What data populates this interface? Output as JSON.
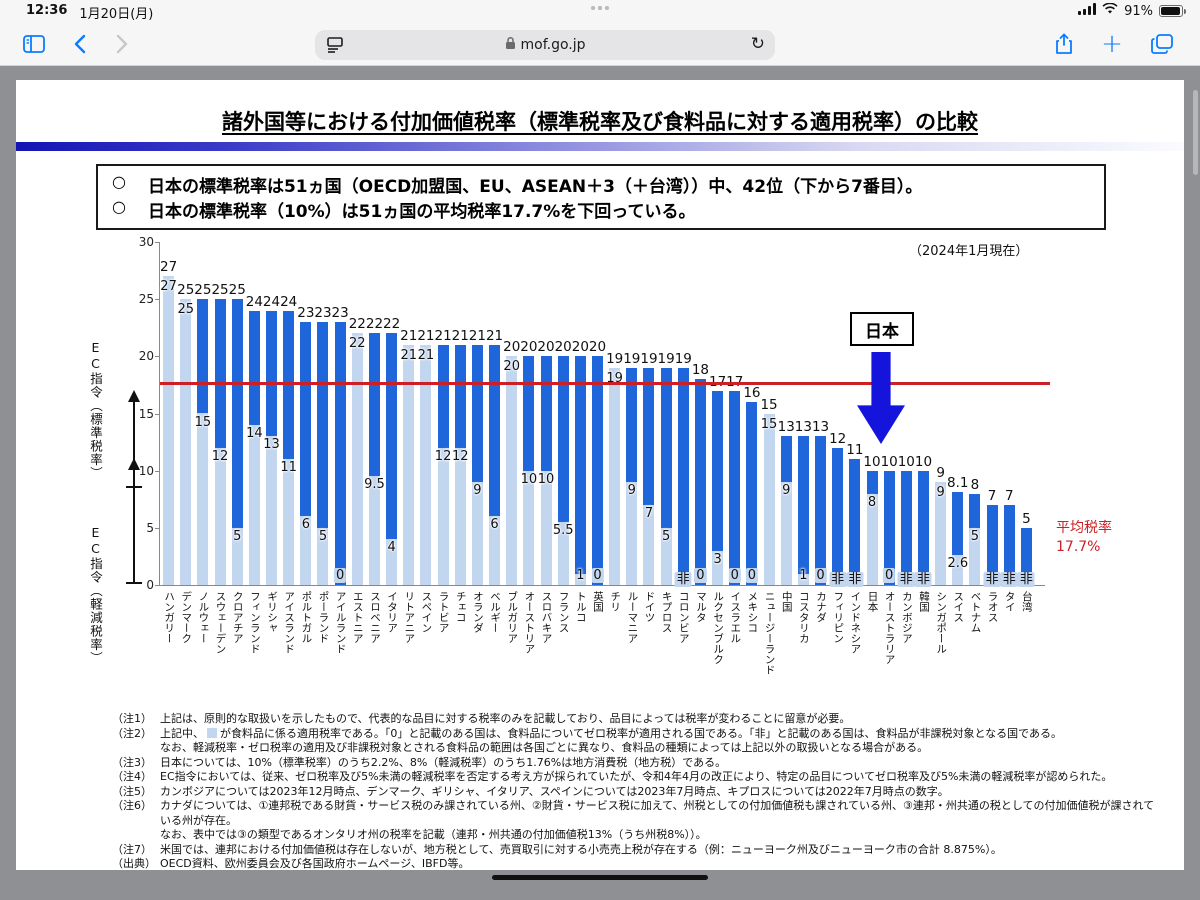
{
  "status_bar": {
    "time": "12:36",
    "date": "1月20日(月)",
    "battery": "91%"
  },
  "browser": {
    "url_host": "mof.go.jp",
    "reload_glyph": "↻"
  },
  "page": {
    "title": "諸外国等における付加価値税率（標準税率及び食料品に対する適用税率）の比較",
    "bullet_mark": "○",
    "bullets": [
      "日本の標準税率は51ヵ国（OECD加盟国、EU、ASEAN＋3（＋台湾））中、42位（下から7番目）。",
      "日本の標準税率（10%）は51ヵ国の平均税率17.7%を下回っている。"
    ],
    "as_of": "（2024年1月現在）",
    "japan_callout": "日本"
  },
  "chart_data": {
    "type": "bar",
    "title": "諸外国等における付加価値税率（標準税率及び食料品に対する適用税率）の比較",
    "ylabel_upper": "EC指令（標準税率）",
    "ylabel_lower": "EC指令（軽減税率）",
    "ylim": [
      0,
      30
    ],
    "yticks": [
      0,
      5,
      10,
      15,
      20,
      25,
      30
    ],
    "grid": false,
    "exempt_label": "非",
    "average_line": {
      "value": 17.7,
      "label": "平均税率",
      "value_label": "17.7%",
      "color": "#cc2026"
    },
    "bar_colors": {
      "standard": "#1e66d9",
      "food": "#c3d6f0"
    },
    "series_meaning": {
      "dark": "標準税率",
      "light": "食料品に係る適用税率"
    },
    "countries": [
      {
        "name": "ハンガリー",
        "standard": 27,
        "food": 27
      },
      {
        "name": "デンマーク",
        "standard": 25,
        "food": 25
      },
      {
        "name": "ノルウェー",
        "standard": 25,
        "food": 15
      },
      {
        "name": "スウェーデン",
        "standard": 25,
        "food": 12
      },
      {
        "name": "クロアチア",
        "standard": 25,
        "food": 5
      },
      {
        "name": "フィンランド",
        "standard": 24,
        "food": 14
      },
      {
        "name": "ギリシャ",
        "standard": 24,
        "food": 13
      },
      {
        "name": "アイスランド",
        "standard": 24,
        "food": 11
      },
      {
        "name": "ポルトガル",
        "standard": 23,
        "food": 6
      },
      {
        "name": "ポーランド",
        "standard": 23,
        "food": 5
      },
      {
        "name": "アイルランド",
        "standard": 23,
        "food": 0
      },
      {
        "name": "エストニア",
        "standard": 22,
        "food": 22
      },
      {
        "name": "スロベニア",
        "standard": 22,
        "food": 9.5
      },
      {
        "name": "イタリア",
        "standard": 22,
        "food": 4
      },
      {
        "name": "リトアニア",
        "standard": 21,
        "food": 21
      },
      {
        "name": "スペイン",
        "standard": 21,
        "food": 21
      },
      {
        "name": "ラトビア",
        "standard": 21,
        "food": 12
      },
      {
        "name": "チェコ",
        "standard": 21,
        "food": 12
      },
      {
        "name": "オランダ",
        "standard": 21,
        "food": 9
      },
      {
        "name": "ベルギー",
        "standard": 21,
        "food": 6
      },
      {
        "name": "ブルガリア",
        "standard": 20,
        "food": 20
      },
      {
        "name": "オーストリア",
        "standard": 20,
        "food": 10
      },
      {
        "name": "スロバキア",
        "standard": 20,
        "food": 10
      },
      {
        "name": "フランス",
        "standard": 20,
        "food": 5.5
      },
      {
        "name": "トルコ",
        "standard": 20,
        "food": 1
      },
      {
        "name": "英国",
        "standard": 20,
        "food": 0
      },
      {
        "name": "チリ",
        "standard": 19,
        "food": 19
      },
      {
        "name": "ルーマニア",
        "standard": 19,
        "food": 9
      },
      {
        "name": "ドイツ",
        "standard": 19,
        "food": 7
      },
      {
        "name": "キプロス",
        "standard": 19,
        "food": 5
      },
      {
        "name": "コロンビア",
        "standard": 19,
        "food": "非"
      },
      {
        "name": "マルタ",
        "standard": 18,
        "food": 0
      },
      {
        "name": "ルクセンブルク",
        "standard": 17,
        "food": 3
      },
      {
        "name": "イスラエル",
        "standard": 17,
        "food": 0
      },
      {
        "name": "メキシコ",
        "standard": 16,
        "food": 0
      },
      {
        "name": "ニュージーランド",
        "standard": 15,
        "food": 15
      },
      {
        "name": "中国",
        "standard": 13,
        "food": 9
      },
      {
        "name": "コスタリカ",
        "standard": 13,
        "food": 1
      },
      {
        "name": "カナダ",
        "standard": 13,
        "food": 0
      },
      {
        "name": "フィリピン",
        "standard": 12,
        "food": "非"
      },
      {
        "name": "インドネシア",
        "standard": 11,
        "food": "非"
      },
      {
        "name": "日本",
        "standard": 10,
        "food": 8
      },
      {
        "name": "オーストラリア",
        "standard": 10,
        "food": 0
      },
      {
        "name": "カンボジア",
        "standard": 10,
        "food": "非"
      },
      {
        "name": "韓国",
        "standard": 10,
        "food": "非"
      },
      {
        "name": "シンガポール",
        "standard": 9,
        "food": 9
      },
      {
        "name": "スイス",
        "standard": 8.1,
        "food": 2.6
      },
      {
        "name": "ベトナム",
        "standard": 8,
        "food": 5
      },
      {
        "name": "ラオス",
        "standard": 7,
        "food": "非"
      },
      {
        "name": "タイ",
        "standard": 7,
        "food": "非"
      },
      {
        "name": "台湾",
        "standard": 5,
        "food": "非"
      }
    ]
  },
  "notes": {
    "n1": {
      "label": "（注1）",
      "text": "上記は、原則的な取扱いを示したもので、代表的な品目に対する税率のみを記載しており、品目によっては税率が変わることに留意が必要。"
    },
    "n2": {
      "label": "（注2）",
      "pre": "上記中、",
      "post": "が食料品に係る適用税率である。「0」と記載のある国は、食料品についてゼロ税率が適用される国である。「非」と記載のある国は、食料品が非課税対象となる国である。"
    },
    "n2b": {
      "label": "",
      "text": "なお、軽減税率・ゼロ税率の適用及び非課税対象とされる食料品の範囲は各国ごとに異なり、食料品の種類によっては上記以外の取扱いとなる場合がある。"
    },
    "n3": {
      "label": "（注3）",
      "text": "日本については、10%（標準税率）のうち2.2%、8%（軽減税率）のうち1.76%は地方消費税（地方税）である。"
    },
    "n4": {
      "label": "（注4）",
      "text": "EC指令においては、従来、ゼロ税率及び5%未満の軽減税率を否定する考え方が採られていたが、令和4年4月の改正により、特定の品目についてゼロ税率及び5%未満の軽減税率が認められた。"
    },
    "n5": {
      "label": "（注5）",
      "text": "カンボジアについては2023年12月時点、デンマーク、ギリシャ、イタリア、スペインについては2023年7月時点、キプロスについては2022年7月時点の数字。"
    },
    "n6": {
      "label": "（注6）",
      "text": "カナダについては、①連邦税である財貨・サービス税のみ課されている州、②財貨・サービス税に加えて、州税としての付加価値税も課されている州、③連邦・州共通の税としての付加価値税が課されている州が存在。"
    },
    "n6b": {
      "label": "",
      "text": "なお、表中では③の類型であるオンタリオ州の税率を記載（連邦・州共通の付加価値税13%（うち州税8%））。"
    },
    "n7": {
      "label": "（注7）",
      "text": "米国では、連邦における付加価値税は存在しないが、地方税として、売買取引に対する小売売上税が存在する（例：ニューヨーク州及びニューヨーク市の合計 8.875%）。"
    },
    "src": {
      "label": "（出典）",
      "text": "OECD資料、欧州委員会及び各国政府ホームページ、IBFD等。"
    }
  }
}
